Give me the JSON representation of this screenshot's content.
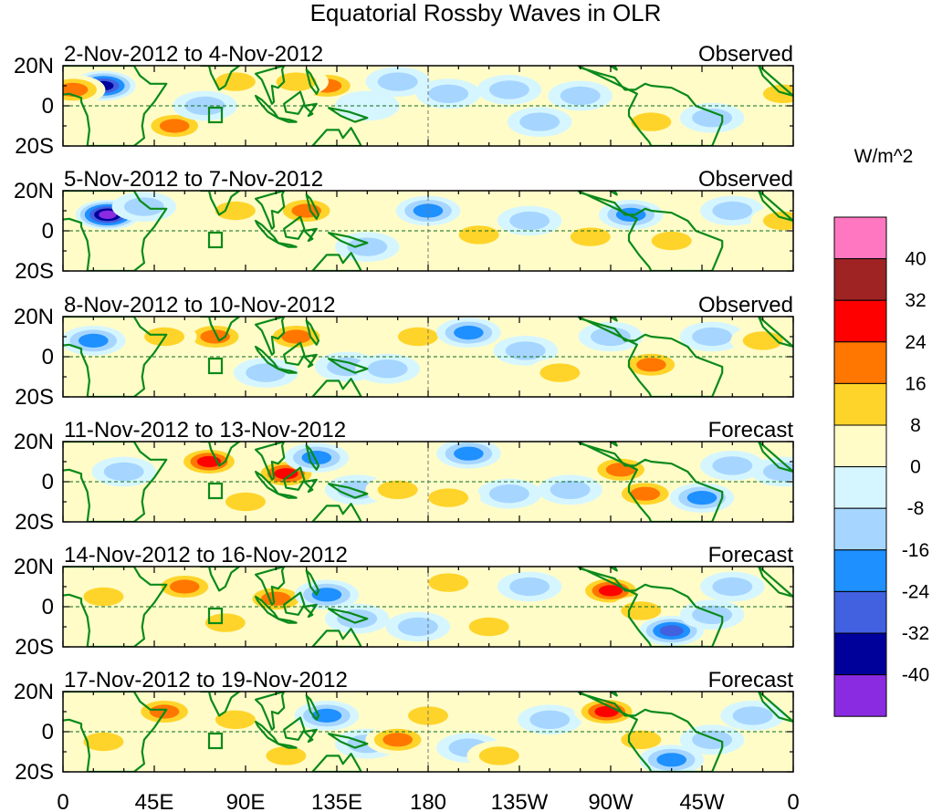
{
  "chart_data": {
    "type": "heatmap",
    "title": "Equatorial Rossby Waves in OLR",
    "units_label": "W/m^2",
    "lat_ticks": [
      "20N",
      "0",
      "20S"
    ],
    "lon_ticks": [
      "0",
      "45E",
      "90E",
      "135E",
      "180",
      "135W",
      "90W",
      "45W",
      "0"
    ],
    "lon_range": [
      0,
      360
    ],
    "lat_range": [
      -20,
      20
    ],
    "colorbar": {
      "levels": [
        "40",
        "32",
        "24",
        "16",
        "8",
        "0",
        "-8",
        "-16",
        "-24",
        "-32",
        "-40"
      ],
      "colors": [
        "#ff77c0",
        "#a02323",
        "#ff0000",
        "#ff7700",
        "#ffd42a",
        "#fffcc8",
        "#d6f6ff",
        "#a6d6ff",
        "#1e90ff",
        "#4161e1",
        "#00009a",
        "#8a2be2"
      ]
    },
    "panels": [
      {
        "range": "2-Nov-2012 to 4-Nov-2012",
        "status": "Observed",
        "anomalies": [
          [
            20,
            10,
            -38
          ],
          [
            5,
            8,
            18
          ],
          [
            130,
            10,
            24
          ],
          [
            115,
            12,
            16
          ],
          [
            85,
            12,
            12
          ],
          [
            55,
            -10,
            18
          ],
          [
            150,
            0,
            -8
          ],
          [
            165,
            12,
            -12
          ],
          [
            190,
            6,
            -16
          ],
          [
            220,
            8,
            -10
          ],
          [
            255,
            5,
            -10
          ],
          [
            235,
            -8,
            -10
          ],
          [
            270,
            -14,
            6
          ],
          [
            290,
            -8,
            16
          ],
          [
            320,
            -6,
            -10
          ],
          [
            355,
            6,
            16
          ],
          [
            70,
            0,
            -10
          ]
        ]
      },
      {
        "range": "5-Nov-2012 to 7-Nov-2012",
        "status": "Observed",
        "anomalies": [
          [
            22,
            8,
            -42
          ],
          [
            120,
            10,
            24
          ],
          [
            85,
            10,
            14
          ],
          [
            40,
            12,
            -10
          ],
          [
            180,
            10,
            -20
          ],
          [
            205,
            -2,
            12
          ],
          [
            230,
            5,
            -16
          ],
          [
            260,
            -3,
            12
          ],
          [
            280,
            8,
            -20
          ],
          [
            300,
            -5,
            10
          ],
          [
            330,
            10,
            -10
          ],
          [
            355,
            5,
            14
          ],
          [
            150,
            -8,
            -10
          ],
          [
            80,
            -12,
            8
          ]
        ]
      },
      {
        "range": "8-Nov-2012 to 10-Nov-2012",
        "status": "Observed",
        "anomalies": [
          [
            15,
            8,
            -24
          ],
          [
            75,
            10,
            18
          ],
          [
            115,
            10,
            20
          ],
          [
            140,
            -5,
            -16
          ],
          [
            160,
            -6,
            -16
          ],
          [
            175,
            10,
            12
          ],
          [
            200,
            12,
            -18
          ],
          [
            228,
            3,
            -12
          ],
          [
            245,
            -8,
            10
          ],
          [
            270,
            10,
            -16
          ],
          [
            290,
            -4,
            20
          ],
          [
            320,
            10,
            -14
          ],
          [
            50,
            10,
            10
          ],
          [
            100,
            -8,
            -10
          ],
          [
            345,
            8,
            10
          ]
        ]
      },
      {
        "range": "11-Nov-2012 to 13-Nov-2012",
        "status": "Forecast",
        "anomalies": [
          [
            72,
            10,
            26
          ],
          [
            110,
            4,
            26
          ],
          [
            125,
            12,
            -24
          ],
          [
            145,
            -4,
            -16
          ],
          [
            165,
            -4,
            16
          ],
          [
            200,
            14,
            -20
          ],
          [
            220,
            -6,
            -16
          ],
          [
            250,
            -4,
            -12
          ],
          [
            275,
            6,
            24
          ],
          [
            287,
            -6,
            24
          ],
          [
            315,
            -8,
            -24
          ],
          [
            330,
            8,
            -16
          ],
          [
            30,
            5,
            -10
          ],
          [
            355,
            5,
            -10
          ],
          [
            90,
            -10,
            10
          ],
          [
            190,
            -8,
            10
          ]
        ]
      },
      {
        "range": "14-Nov-2012 to 16-Nov-2012",
        "status": "Forecast",
        "anomalies": [
          [
            60,
            10,
            24
          ],
          [
            105,
            4,
            20
          ],
          [
            130,
            6,
            -24
          ],
          [
            145,
            -6,
            -16
          ],
          [
            175,
            -10,
            -14
          ],
          [
            190,
            12,
            10
          ],
          [
            210,
            -10,
            16
          ],
          [
            230,
            10,
            -12
          ],
          [
            270,
            8,
            26
          ],
          [
            285,
            -2,
            16
          ],
          [
            300,
            -12,
            -28
          ],
          [
            320,
            -4,
            -16
          ],
          [
            330,
            10,
            -14
          ],
          [
            20,
            5,
            10
          ],
          [
            80,
            -8,
            12
          ],
          [
            250,
            -10,
            8
          ]
        ]
      },
      {
        "range": "17-Nov-2012 to 19-Nov-2012",
        "status": "Forecast",
        "anomalies": [
          [
            50,
            10,
            20
          ],
          [
            85,
            6,
            14
          ],
          [
            130,
            8,
            -24
          ],
          [
            150,
            -6,
            -10
          ],
          [
            165,
            -4,
            20
          ],
          [
            200,
            -8,
            -16
          ],
          [
            215,
            -12,
            16
          ],
          [
            240,
            6,
            -10
          ],
          [
            268,
            10,
            28
          ],
          [
            285,
            -4,
            14
          ],
          [
            300,
            -14,
            -24
          ],
          [
            320,
            -4,
            -10
          ],
          [
            20,
            -5,
            10
          ],
          [
            110,
            -12,
            12
          ],
          [
            180,
            8,
            10
          ],
          [
            340,
            8,
            -10
          ]
        ]
      }
    ]
  }
}
